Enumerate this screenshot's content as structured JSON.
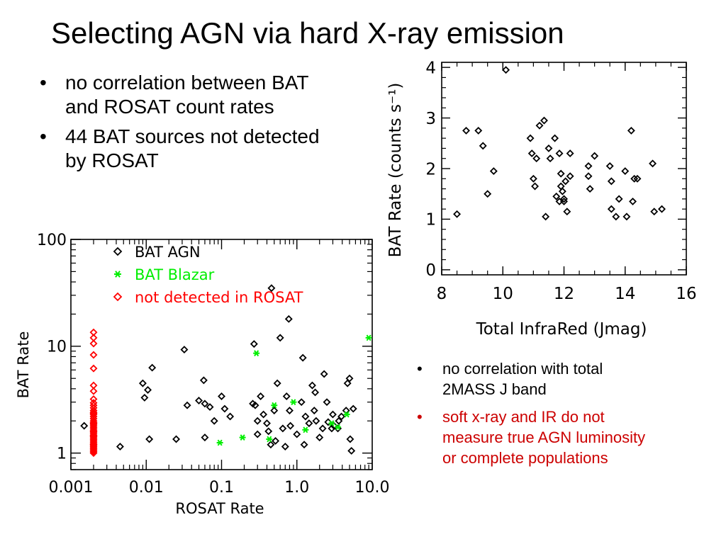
{
  "slide": {
    "title": "Selecting AGN via hard X-ray emission",
    "bullets_left": [
      "no correlation between BAT and ROSAT count rates",
      "44 BAT sources not detected by ROSAT"
    ],
    "bullets_right": [
      {
        "text": "no correlation with total 2MASS J band",
        "color": "#000000"
      },
      {
        "text": "soft x-ray and IR do not measure true AGN luminosity or complete populations",
        "color": "#cc0000"
      }
    ],
    "bullet_char": "•"
  },
  "chart_data": [
    {
      "type": "scatter",
      "title": "",
      "xlabel": "ROSAT Rate",
      "ylabel": "BAT Rate",
      "xscale": "log",
      "yscale": "log",
      "xlim": [
        0.001,
        10.0
      ],
      "ylim": [
        0.7,
        100
      ],
      "xticks": [
        {
          "value": 0.001,
          "label": "0.001"
        },
        {
          "value": 0.01,
          "label": "0.01"
        },
        {
          "value": 0.1,
          "label": "0.1"
        },
        {
          "value": 1.0,
          "label": "1.0"
        },
        {
          "value": 10.0,
          "label": "10.0"
        }
      ],
      "yticks": [
        {
          "value": 1,
          "label": "1"
        },
        {
          "value": 10,
          "label": "10"
        },
        {
          "value": 100,
          "label": "100"
        }
      ],
      "grid": false,
      "legend_position": "top-right",
      "series": [
        {
          "name": "BAT AGN",
          "marker": "diamond",
          "color": "#000000",
          "points": [
            [
              0.0015,
              1.8
            ],
            [
              0.0045,
              1.15
            ],
            [
              0.009,
              4.5
            ],
            [
              0.0095,
              3.3
            ],
            [
              0.0105,
              3.9
            ],
            [
              0.011,
              1.35
            ],
            [
              0.012,
              6.3
            ],
            [
              0.025,
              1.35
            ],
            [
              0.032,
              9.3
            ],
            [
              0.035,
              2.8
            ],
            [
              0.05,
              3.1
            ],
            [
              0.058,
              4.8
            ],
            [
              0.06,
              2.9
            ],
            [
              0.06,
              1.4
            ],
            [
              0.07,
              2.7
            ],
            [
              0.08,
              2.0
            ],
            [
              0.1,
              3.4
            ],
            [
              0.11,
              2.6
            ],
            [
              0.13,
              2.2
            ],
            [
              0.26,
              2.9
            ],
            [
              0.27,
              10.5
            ],
            [
              0.28,
              2.8
            ],
            [
              0.3,
              2.0
            ],
            [
              0.3,
              1.5
            ],
            [
              0.33,
              3.4
            ],
            [
              0.36,
              2.3
            ],
            [
              0.4,
              1.9
            ],
            [
              0.42,
              1.6
            ],
            [
              0.45,
              1.2
            ],
            [
              0.46,
              35
            ],
            [
              0.5,
              2.5
            ],
            [
              0.52,
              1.3
            ],
            [
              0.55,
              4.5
            ],
            [
              0.6,
              12
            ],
            [
              0.65,
              1.7
            ],
            [
              0.7,
              1.15
            ],
            [
              0.73,
              3.4
            ],
            [
              0.78,
              18
            ],
            [
              0.8,
              2.5
            ],
            [
              0.82,
              1.8
            ],
            [
              1.0,
              1.5
            ],
            [
              1.15,
              3.0
            ],
            [
              1.2,
              7.8
            ],
            [
              1.25,
              1.2
            ],
            [
              1.3,
              2.2
            ],
            [
              1.45,
              1.9
            ],
            [
              1.6,
              4.3
            ],
            [
              1.7,
              2.5
            ],
            [
              1.75,
              3.7
            ],
            [
              1.8,
              2.0
            ],
            [
              2.0,
              1.4
            ],
            [
              2.2,
              1.7
            ],
            [
              2.3,
              5.5
            ],
            [
              2.5,
              3.0
            ],
            [
              2.6,
              1.95
            ],
            [
              2.9,
              1.7
            ],
            [
              3.0,
              2.3
            ],
            [
              3.1,
              1.8
            ],
            [
              3.5,
              1.7
            ],
            [
              3.6,
              2.0
            ],
            [
              3.9,
              2.2
            ],
            [
              4.5,
              2.5
            ],
            [
              4.7,
              4.5
            ],
            [
              5.0,
              5.0
            ],
            [
              5.1,
              1.35
            ],
            [
              5.3,
              1.05
            ],
            [
              5.6,
              2.6
            ]
          ]
        },
        {
          "name": "BAT Blazar",
          "marker": "asterisk",
          "color": "#00ee00",
          "points": [
            [
              0.095,
              1.25
            ],
            [
              0.19,
              1.4
            ],
            [
              0.29,
              8.6
            ],
            [
              0.43,
              1.35
            ],
            [
              0.5,
              2.8
            ],
            [
              0.9,
              3.0
            ],
            [
              1.3,
              1.65
            ],
            [
              2.9,
              1.9
            ],
            [
              3.5,
              1.75
            ],
            [
              4.6,
              2.3
            ],
            [
              9.0,
              12
            ]
          ]
        },
        {
          "name": "not detected in ROSAT",
          "marker": "diamond",
          "color": "#ff0000",
          "points": [
            [
              0.002,
              13.5
            ],
            [
              0.002,
              12.0
            ],
            [
              0.002,
              10.6
            ],
            [
              0.002,
              8.3
            ],
            [
              0.002,
              6.2
            ],
            [
              0.002,
              4.3
            ],
            [
              0.002,
              3.8
            ],
            [
              0.002,
              3.2
            ],
            [
              0.002,
              2.8
            ],
            [
              0.002,
              2.65
            ],
            [
              0.002,
              2.5
            ],
            [
              0.002,
              2.4
            ],
            [
              0.002,
              2.3
            ],
            [
              0.002,
              2.2
            ],
            [
              0.002,
              2.1
            ],
            [
              0.002,
              2.0
            ],
            [
              0.002,
              1.93
            ],
            [
              0.002,
              1.86
            ],
            [
              0.002,
              1.8
            ],
            [
              0.002,
              1.74
            ],
            [
              0.002,
              1.68
            ],
            [
              0.002,
              1.62
            ],
            [
              0.002,
              1.57
            ],
            [
              0.002,
              1.52
            ],
            [
              0.002,
              1.47
            ],
            [
              0.002,
              1.42
            ],
            [
              0.002,
              1.38
            ],
            [
              0.002,
              1.34
            ],
            [
              0.002,
              1.3
            ],
            [
              0.002,
              1.26
            ],
            [
              0.002,
              1.22
            ],
            [
              0.002,
              1.18
            ],
            [
              0.002,
              1.15
            ],
            [
              0.002,
              1.12
            ],
            [
              0.002,
              1.09
            ],
            [
              0.002,
              1.06
            ],
            [
              0.002,
              1.03
            ],
            [
              0.002,
              1.0
            ],
            [
              0.002,
              2.95
            ],
            [
              0.002,
              2.35
            ],
            [
              0.002,
              1.9
            ],
            [
              0.002,
              1.6
            ],
            [
              0.002,
              1.45
            ],
            [
              0.002,
              1.2
            ]
          ]
        }
      ]
    },
    {
      "type": "scatter",
      "title": "",
      "xlabel": "Total InfraRed (Jmag)",
      "ylabel": "BAT Rate (counts s⁻¹)",
      "xscale": "linear",
      "yscale": "linear",
      "xlim": [
        8,
        16
      ],
      "ylim": [
        -0.1,
        4.1
      ],
      "xticks": [
        {
          "value": 8,
          "label": "8"
        },
        {
          "value": 10,
          "label": "10"
        },
        {
          "value": 12,
          "label": "12"
        },
        {
          "value": 14,
          "label": "14"
        },
        {
          "value": 16,
          "label": "16"
        }
      ],
      "yticks": [
        {
          "value": 0,
          "label": "0"
        },
        {
          "value": 1,
          "label": "1"
        },
        {
          "value": 2,
          "label": "2"
        },
        {
          "value": 3,
          "label": "3"
        },
        {
          "value": 4,
          "label": "4"
        }
      ],
      "grid": false,
      "series": [
        {
          "name": "",
          "marker": "diamond",
          "color": "#000000",
          "points": [
            [
              8.5,
              1.1
            ],
            [
              8.8,
              2.75
            ],
            [
              9.2,
              2.75
            ],
            [
              9.35,
              2.45
            ],
            [
              9.5,
              1.5
            ],
            [
              9.7,
              1.95
            ],
            [
              10.1,
              3.95
            ],
            [
              10.9,
              2.6
            ],
            [
              10.95,
              2.3
            ],
            [
              11.0,
              1.8
            ],
            [
              11.05,
              1.65
            ],
            [
              11.1,
              2.2
            ],
            [
              11.2,
              2.85
            ],
            [
              11.35,
              2.95
            ],
            [
              11.4,
              1.05
            ],
            [
              11.5,
              2.4
            ],
            [
              11.55,
              2.2
            ],
            [
              11.7,
              2.6
            ],
            [
              11.75,
              1.45
            ],
            [
              11.85,
              2.3
            ],
            [
              11.85,
              1.35
            ],
            [
              11.9,
              1.65
            ],
            [
              11.9,
              1.9
            ],
            [
              11.95,
              1.55
            ],
            [
              12.0,
              1.4
            ],
            [
              12.0,
              1.35
            ],
            [
              12.05,
              1.75
            ],
            [
              12.1,
              1.15
            ],
            [
              12.2,
              2.3
            ],
            [
              12.2,
              1.85
            ],
            [
              12.8,
              2.05
            ],
            [
              12.8,
              1.85
            ],
            [
              12.85,
              1.6
            ],
            [
              13.0,
              2.25
            ],
            [
              13.5,
              2.05
            ],
            [
              13.55,
              1.75
            ],
            [
              13.55,
              1.2
            ],
            [
              13.7,
              1.05
            ],
            [
              13.8,
              1.4
            ],
            [
              14.0,
              1.95
            ],
            [
              14.05,
              1.05
            ],
            [
              14.2,
              2.75
            ],
            [
              14.25,
              1.35
            ],
            [
              14.3,
              1.8
            ],
            [
              14.4,
              1.8
            ],
            [
              14.9,
              2.1
            ],
            [
              14.95,
              1.15
            ],
            [
              15.2,
              1.2
            ]
          ]
        }
      ]
    }
  ]
}
